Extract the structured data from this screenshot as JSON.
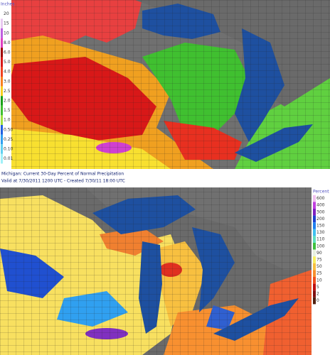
{
  "top_map": {
    "legend": {
      "title": "Inches",
      "labels": [
        "20",
        "15",
        "10",
        "8.0",
        "6.0",
        "5.0",
        "4.0",
        "3.0",
        "2.5",
        "2.0",
        "1.5",
        "1.0",
        "0.50",
        "0.25",
        "0.10",
        "0.01"
      ],
      "colors": [
        "#ffffff",
        "#e8c8f0",
        "#c060e0",
        "#e040c0",
        "#a00000",
        "#d81818",
        "#f04020",
        "#f88020",
        "#f8d020",
        "#18a018",
        "#40c030",
        "#a0e040",
        "#2060e0",
        "#30a0f0",
        "#60d0f0",
        "#a0f0f8"
      ]
    }
  },
  "bottom_map": {
    "header": {
      "title": "Michigan: Current 30-Day Percent of Normal Precipitation",
      "subtitle": "Valid at 7/30/2011 1200 UTC - Created 7/30/11 18:00 UTC"
    },
    "legend": {
      "title": "Percent",
      "labels": [
        "600",
        "400",
        "300",
        "200",
        "150",
        "130",
        "110",
        "100",
        "90",
        "75",
        "50",
        "25",
        "10",
        "5",
        "2",
        "0"
      ],
      "colors": [
        "#f0c0f0",
        "#c040e0",
        "#8020c0",
        "#2040d0",
        "#2080f0",
        "#40c0f0",
        "#60e0c0",
        "#40c040",
        "#e8f0e0",
        "#f8f060",
        "#f8c040",
        "#f89030",
        "#f05020",
        "#c01010",
        "#801010",
        "#502010"
      ]
    }
  }
}
